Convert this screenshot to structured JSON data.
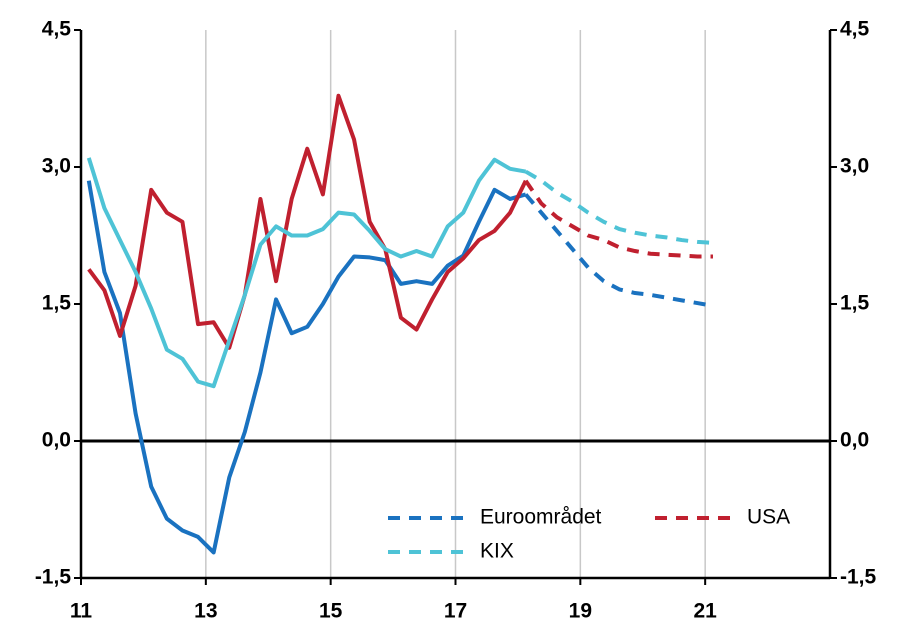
{
  "chart_data": {
    "type": "line",
    "x": [
      11.125,
      11.375,
      11.625,
      11.875,
      12.125,
      12.375,
      12.625,
      12.875,
      13.125,
      13.375,
      13.625,
      13.875,
      14.125,
      14.375,
      14.625,
      14.875,
      15.125,
      15.375,
      15.625,
      15.875,
      16.125,
      16.375,
      16.625,
      16.875,
      17.125,
      17.375,
      17.625,
      17.875,
      18.125,
      18.375,
      18.625,
      18.875,
      19.125,
      19.375,
      19.625,
      19.875,
      20.125,
      20.375,
      20.625,
      20.875,
      21.125
    ],
    "forecast_from": 18.125,
    "series": [
      {
        "name": "Euroområdet",
        "color": "#1a72c0",
        "values": [
          2.85,
          1.85,
          1.4,
          0.3,
          -0.5,
          -0.85,
          -0.98,
          -1.05,
          -1.22,
          -0.4,
          0.1,
          0.75,
          1.55,
          1.18,
          1.25,
          1.5,
          1.8,
          2.02,
          2.01,
          1.98,
          1.72,
          1.75,
          1.72,
          1.92,
          2.03,
          2.4,
          2.75,
          2.65,
          2.7,
          2.5,
          2.3,
          2.1,
          1.9,
          1.75,
          1.66,
          1.62,
          1.6,
          1.57,
          1.54,
          1.51,
          1.48
        ]
      },
      {
        "name": "USA",
        "color": "#c0202f",
        "values": [
          1.88,
          1.65,
          1.15,
          1.7,
          2.75,
          2.5,
          2.4,
          1.28,
          1.3,
          1.02,
          1.6,
          2.65,
          1.75,
          2.65,
          3.2,
          2.7,
          3.78,
          3.3,
          2.4,
          2.1,
          1.35,
          1.22,
          1.55,
          1.85,
          2.0,
          2.2,
          2.3,
          2.5,
          2.85,
          2.6,
          2.45,
          2.35,
          2.25,
          2.2,
          2.12,
          2.08,
          2.05,
          2.04,
          2.03,
          2.02,
          2.02
        ]
      },
      {
        "name": "KIX",
        "color": "#4ec3d6",
        "values": [
          3.1,
          2.55,
          2.2,
          1.85,
          1.45,
          1.0,
          0.9,
          0.65,
          0.6,
          1.1,
          1.6,
          2.15,
          2.35,
          2.25,
          2.25,
          2.32,
          2.5,
          2.48,
          2.3,
          2.1,
          2.02,
          2.08,
          2.02,
          2.35,
          2.5,
          2.85,
          3.08,
          2.98,
          2.95,
          2.85,
          2.72,
          2.62,
          2.5,
          2.4,
          2.32,
          2.28,
          2.25,
          2.23,
          2.2,
          2.18,
          2.17
        ]
      }
    ],
    "xlim": [
      11,
      23
    ],
    "xticks": [
      11,
      13,
      15,
      17,
      19,
      21
    ],
    "ylim": [
      -1.5,
      4.5
    ],
    "yticks": [
      {
        "value": -1.5,
        "label": "-1,5"
      },
      {
        "value": 0,
        "label": "0,0"
      },
      {
        "value": 1.5,
        "label": "1,5"
      },
      {
        "value": 3,
        "label": "3,0"
      },
      {
        "value": 4.5,
        "label": "4,5"
      }
    ],
    "y2lim": [
      -1.5,
      4.5
    ],
    "y2ticks": [
      {
        "value": -1.5,
        "label": "-1,5"
      },
      {
        "value": 0,
        "label": "0,0"
      },
      {
        "value": 1.5,
        "label": "1,5"
      },
      {
        "value": 3,
        "label": "3,0"
      },
      {
        "value": 4.5,
        "label": "4,5"
      }
    ],
    "grid": "x",
    "legend": "lower right"
  }
}
